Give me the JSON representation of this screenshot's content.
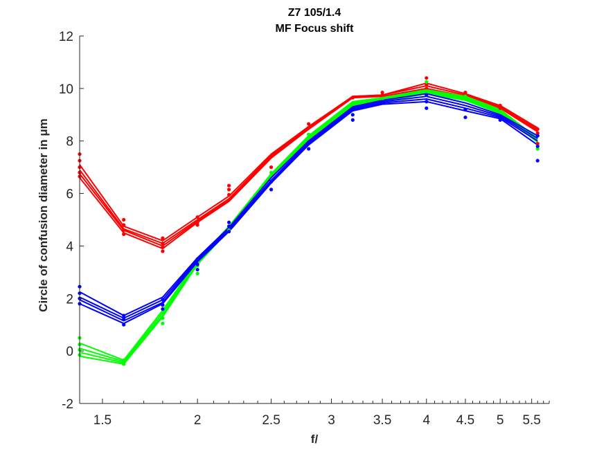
{
  "chart_data": {
    "type": "line",
    "title": "Z7 105/1.4",
    "subtitle": "MF Focus shift",
    "xlabel": "f/",
    "ylabel": "Circle of confusion diameter in μm",
    "xscale": "log",
    "xlim": [
      1.4,
      5.8
    ],
    "ylim": [
      -2,
      12
    ],
    "xticks": [
      1.5,
      2,
      2.5,
      3,
      3.5,
      4,
      4.5,
      5,
      5.5
    ],
    "xtick_labels": [
      "1.5",
      "2",
      "2.5",
      "3",
      "3.5",
      "4",
      "4.5",
      "5",
      "5.5"
    ],
    "yticks": [
      -2,
      0,
      2,
      4,
      6,
      8,
      10,
      12
    ],
    "ytick_labels": [
      "-2",
      "0",
      "2",
      "4",
      "6",
      "8",
      "10",
      "12"
    ],
    "grid": false,
    "x": [
      1.4,
      1.6,
      1.8,
      2.0,
      2.2,
      2.5,
      2.8,
      3.2,
      3.5,
      4.0,
      4.5,
      5.0,
      5.6
    ],
    "series": [
      {
        "color": "#ff0000",
        "kind": "line",
        "values": [
          7.1,
          4.75,
          4.2,
          5.1,
          5.9,
          7.5,
          8.55,
          9.7,
          9.75,
          10.2,
          9.8,
          9.35,
          8.5
        ]
      },
      {
        "color": "#ff0000",
        "kind": "line",
        "values": [
          6.9,
          4.65,
          4.1,
          5.0,
          5.8,
          7.45,
          8.5,
          9.7,
          9.75,
          10.1,
          9.75,
          9.3,
          8.45
        ]
      },
      {
        "color": "#ff0000",
        "kind": "line",
        "values": [
          6.75,
          4.6,
          4.0,
          4.95,
          5.75,
          7.4,
          8.45,
          9.65,
          9.7,
          10.0,
          9.7,
          9.28,
          8.4
        ]
      },
      {
        "color": "#ff0000",
        "kind": "line",
        "values": [
          6.6,
          4.5,
          3.9,
          4.9,
          5.7,
          7.35,
          8.45,
          9.65,
          9.7,
          9.95,
          9.65,
          9.25,
          8.35
        ]
      },
      {
        "color": "#00ff00",
        "kind": "line",
        "values": [
          0.3,
          -0.35,
          1.55,
          3.45,
          4.75,
          6.75,
          8.2,
          9.5,
          9.65,
          9.95,
          9.7,
          9.2,
          8.1
        ]
      },
      {
        "color": "#00ff00",
        "kind": "line",
        "values": [
          0.1,
          -0.4,
          1.45,
          3.4,
          4.7,
          6.7,
          8.15,
          9.45,
          9.6,
          9.9,
          9.65,
          9.15,
          8.05
        ]
      },
      {
        "color": "#00ff00",
        "kind": "line",
        "values": [
          -0.05,
          -0.45,
          1.35,
          3.35,
          4.65,
          6.65,
          8.1,
          9.4,
          9.55,
          9.85,
          9.6,
          9.1,
          8.0
        ]
      },
      {
        "color": "#00ff00",
        "kind": "line",
        "values": [
          -0.2,
          -0.5,
          1.3,
          3.3,
          4.6,
          6.6,
          8.05,
          9.35,
          9.5,
          9.8,
          9.55,
          9.05,
          7.95
        ]
      },
      {
        "color": "#0000ff",
        "kind": "line",
        "values": [
          2.25,
          1.35,
          2.05,
          3.55,
          4.7,
          6.6,
          8.0,
          9.3,
          9.55,
          9.8,
          9.45,
          9.0,
          8.2
        ]
      },
      {
        "color": "#0000ff",
        "kind": "line",
        "values": [
          2.05,
          1.25,
          1.95,
          3.5,
          4.65,
          6.5,
          7.95,
          9.25,
          9.5,
          9.7,
          9.35,
          8.95,
          8.1
        ]
      },
      {
        "color": "#0000ff",
        "kind": "line",
        "values": [
          1.95,
          1.15,
          1.85,
          3.45,
          4.6,
          6.45,
          7.9,
          9.2,
          9.45,
          9.6,
          9.25,
          8.9,
          8.0
        ]
      },
      {
        "color": "#0000ff",
        "kind": "line",
        "values": [
          1.8,
          1.05,
          1.8,
          3.4,
          4.55,
          6.4,
          7.85,
          9.15,
          9.4,
          9.5,
          9.15,
          8.85,
          7.85
        ]
      },
      {
        "color": "#ff0000",
        "kind": "points",
        "values": [
          [
            1.4,
            7.5
          ],
          [
            1.4,
            7.25
          ],
          [
            1.4,
            7.0
          ],
          [
            1.4,
            6.8
          ],
          [
            1.4,
            6.65
          ],
          [
            1.6,
            5.0
          ],
          [
            1.6,
            4.8
          ],
          [
            1.6,
            4.6
          ],
          [
            1.6,
            4.45
          ],
          [
            1.8,
            4.3
          ],
          [
            1.8,
            4.1
          ],
          [
            1.8,
            3.95
          ],
          [
            1.8,
            3.8
          ],
          [
            2.0,
            5.1
          ],
          [
            2.0,
            4.9
          ],
          [
            2.0,
            4.8
          ],
          [
            2.2,
            6.3
          ],
          [
            2.2,
            6.15
          ],
          [
            2.2,
            5.95
          ],
          [
            2.5,
            7.0
          ],
          [
            2.8,
            8.65
          ],
          [
            2.8,
            8.5
          ],
          [
            3.2,
            9.65
          ],
          [
            3.5,
            9.85
          ],
          [
            3.5,
            9.75
          ],
          [
            4.0,
            10.4
          ],
          [
            4.0,
            10.15
          ],
          [
            4.0,
            10.0
          ],
          [
            4.5,
            9.85
          ],
          [
            4.5,
            9.75
          ],
          [
            5.0,
            9.35
          ],
          [
            5.0,
            9.25
          ],
          [
            5.6,
            8.45
          ],
          [
            5.6,
            8.3
          ],
          [
            5.6,
            7.9
          ]
        ]
      },
      {
        "color": "#00ff00",
        "kind": "points",
        "values": [
          [
            1.4,
            0.5
          ],
          [
            1.4,
            0.25
          ],
          [
            1.4,
            0.05
          ],
          [
            1.4,
            -0.15
          ],
          [
            1.6,
            -0.5
          ],
          [
            1.6,
            -0.35
          ],
          [
            1.8,
            1.45
          ],
          [
            1.8,
            1.25
          ],
          [
            1.8,
            1.05
          ],
          [
            2.0,
            3.25
          ],
          [
            2.0,
            2.95
          ],
          [
            2.2,
            4.6
          ],
          [
            2.5,
            6.8
          ],
          [
            2.8,
            8.25
          ],
          [
            3.2,
            9.45
          ],
          [
            3.5,
            9.6
          ],
          [
            4.0,
            10.25
          ],
          [
            4.0,
            9.9
          ],
          [
            4.5,
            9.7
          ],
          [
            5.0,
            9.1
          ],
          [
            5.6,
            7.7
          ]
        ]
      },
      {
        "color": "#0000ff",
        "kind": "points",
        "values": [
          [
            1.4,
            2.45
          ],
          [
            1.4,
            2.2
          ],
          [
            1.4,
            2.0
          ],
          [
            1.4,
            1.8
          ],
          [
            1.6,
            1.35
          ],
          [
            1.6,
            1.2
          ],
          [
            1.6,
            1.0
          ],
          [
            1.8,
            1.95
          ],
          [
            1.8,
            1.75
          ],
          [
            1.8,
            1.6
          ],
          [
            2.0,
            3.5
          ],
          [
            2.0,
            3.3
          ],
          [
            2.0,
            3.1
          ],
          [
            2.2,
            4.9
          ],
          [
            2.2,
            4.75
          ],
          [
            2.2,
            4.55
          ],
          [
            2.5,
            6.45
          ],
          [
            2.5,
            6.15
          ],
          [
            2.8,
            7.95
          ],
          [
            2.8,
            7.7
          ],
          [
            3.2,
            9.2
          ],
          [
            3.2,
            9.0
          ],
          [
            3.2,
            8.8
          ],
          [
            3.5,
            9.5
          ],
          [
            4.0,
            9.75
          ],
          [
            4.0,
            9.5
          ],
          [
            4.0,
            9.25
          ],
          [
            4.5,
            9.2
          ],
          [
            4.5,
            8.9
          ],
          [
            5.0,
            8.9
          ],
          [
            5.0,
            8.8
          ],
          [
            5.6,
            8.2
          ],
          [
            5.6,
            7.8
          ],
          [
            5.6,
            7.25
          ]
        ]
      }
    ]
  }
}
